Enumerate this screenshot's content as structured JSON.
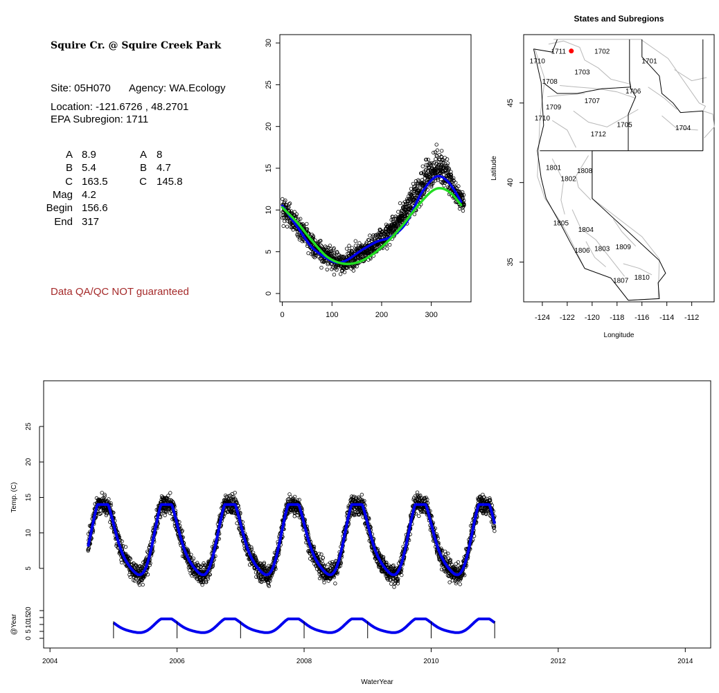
{
  "site": {
    "name": "Squire Cr. @ Squire Creek Park",
    "site_line": "Site: 05H070",
    "agency_line": "Agency: WA.Ecology",
    "location_line": "Location: -121.6726 , 48.2701",
    "subregion_line": "EPA Subregion: 1711",
    "qa_note": "Data QA/QC NOT guaranteed"
  },
  "params": {
    "left": [
      {
        "label": "A",
        "value": "8.9"
      },
      {
        "label": "B",
        "value": "5.4"
      },
      {
        "label": "C",
        "value": "163.5"
      },
      {
        "label": "Mag",
        "value": "4.2"
      },
      {
        "label": "Begin",
        "value": "156.6"
      },
      {
        "label": "End",
        "value": "317"
      }
    ],
    "right": [
      {
        "label": "A",
        "value": "8"
      },
      {
        "label": "B",
        "value": "4.7"
      },
      {
        "label": "C",
        "value": "145.8"
      }
    ]
  },
  "colors": {
    "fit_blue": "#0000ee",
    "fit_green": "#22dd22",
    "site_marker": "#ff0000",
    "qa_text": "#a52a2a"
  },
  "chart_data": [
    {
      "type": "scatter",
      "title": "",
      "xlabel": "",
      "ylabel": "",
      "xlim": [
        -5,
        380
      ],
      "ylim": [
        -1,
        31
      ],
      "xticks": [
        0,
        100,
        200,
        300
      ],
      "yticks": [
        0,
        5,
        10,
        15,
        20,
        25,
        30
      ],
      "series": [
        {
          "style": "points",
          "x": [
            0,
            15,
            30,
            45,
            60,
            75,
            90,
            105,
            120,
            135,
            150,
            165,
            180,
            195,
            210,
            225,
            240,
            255,
            270,
            285,
            300,
            315,
            330,
            345,
            360
          ],
          "y": [
            10,
            9.3,
            8,
            7,
            5.8,
            5,
            4.3,
            3.9,
            3.8,
            4,
            4.5,
            5,
            5.7,
            6.3,
            7,
            8,
            9.3,
            10.8,
            12,
            13.5,
            14.7,
            15.3,
            14.2,
            12.5,
            11
          ]
        },
        {
          "style": "line",
          "color": "#0000ee",
          "x": [
            0,
            30,
            60,
            90,
            110,
            130,
            160,
            190,
            220,
            250,
            280,
            310,
            335,
            360
          ],
          "y": [
            10.5,
            8,
            5.5,
            4.2,
            3.7,
            4,
            5.2,
            6.2,
            6.8,
            8.5,
            12,
            14,
            13.3,
            11
          ]
        },
        {
          "style": "line",
          "color": "#22dd22",
          "x": [
            0,
            30,
            60,
            90,
            120,
            150,
            180,
            210,
            240,
            270,
            300,
            320,
            340,
            360
          ],
          "y": [
            10.3,
            8.5,
            6.3,
            4.4,
            3.6,
            3.7,
            4.6,
            6.1,
            8,
            10.3,
            12.2,
            12.6,
            12,
            10.6
          ]
        }
      ]
    },
    {
      "type": "map",
      "title": "States and Subregions",
      "xlabel": "Longitude",
      "ylabel": "Latitude",
      "xlim": [
        -125.5,
        -110.2
      ],
      "ylim": [
        32.5,
        49.3
      ],
      "xticks": [
        -124,
        -122,
        -120,
        -118,
        -116,
        -114,
        -112
      ],
      "yticks": [
        35,
        40,
        45
      ],
      "site": {
        "lon": -121.6726,
        "lat": 48.2701
      },
      "subregions": [
        {
          "label": "1711",
          "lon": -122.7,
          "lat": 48.1
        },
        {
          "label": "1702",
          "lon": -119.2,
          "lat": 48.1
        },
        {
          "label": "1701",
          "lon": -115.4,
          "lat": 47.5
        },
        {
          "label": "1710",
          "lon": -124.4,
          "lat": 47.5
        },
        {
          "label": "1703",
          "lon": -120.8,
          "lat": 46.8
        },
        {
          "label": "1708",
          "lon": -123.4,
          "lat": 46.2
        },
        {
          "label": "1706",
          "lon": -116.7,
          "lat": 45.6
        },
        {
          "label": "1707",
          "lon": -120.0,
          "lat": 45.0
        },
        {
          "label": "1709",
          "lon": -123.1,
          "lat": 44.6
        },
        {
          "label": "1710",
          "lon": -124.0,
          "lat": 43.9
        },
        {
          "label": "1705",
          "lon": -117.4,
          "lat": 43.5
        },
        {
          "label": "1704",
          "lon": -112.7,
          "lat": 43.3
        },
        {
          "label": "1712",
          "lon": -119.5,
          "lat": 42.9
        },
        {
          "label": "1801",
          "lon": -123.1,
          "lat": 40.8
        },
        {
          "label": "1808",
          "lon": -120.6,
          "lat": 40.6
        },
        {
          "label": "1802",
          "lon": -121.9,
          "lat": 40.1
        },
        {
          "label": "1805",
          "lon": -122.5,
          "lat": 37.3
        },
        {
          "label": "1804",
          "lon": -120.5,
          "lat": 36.9
        },
        {
          "label": "1806",
          "lon": -120.8,
          "lat": 35.6
        },
        {
          "label": "1803",
          "lon": -119.2,
          "lat": 35.7
        },
        {
          "label": "1809",
          "lon": -117.5,
          "lat": 35.8
        },
        {
          "label": "1810",
          "lon": -116.0,
          "lat": 33.9
        },
        {
          "label": "1807",
          "lon": -117.7,
          "lat": 33.7
        }
      ]
    },
    {
      "type": "scatter",
      "title": "",
      "xlabel": "WaterYear",
      "ylabel": "Temp. (C)",
      "ylabel2": "@Year",
      "xlim": [
        2003.9,
        2014.4
      ],
      "ylim": [
        0,
        30
      ],
      "xticks": [
        2004,
        2006,
        2008,
        2010,
        2012,
        2014
      ],
      "yticks": [
        5,
        10,
        15,
        20,
        25
      ],
      "yticks2": [
        0,
        5,
        10,
        15,
        20
      ],
      "series": [
        {
          "style": "seasonal",
          "color": "#0000ee",
          "x_start": 2004.6,
          "x_end": 2011.0,
          "mean": 8.9,
          "amplitude": 5.4,
          "peak_year_fraction": 0.85,
          "range_min": 3.5,
          "range_max": 14
        },
        {
          "style": "annual-fit",
          "color": "#0000ee",
          "x_start": 2005.0,
          "x_end": 2011.0,
          "range_min": 3,
          "range_max": 14.5,
          "year_ticks": [
            2005,
            2006,
            2007,
            2008,
            2009,
            2010,
            2011
          ]
        }
      ]
    }
  ]
}
